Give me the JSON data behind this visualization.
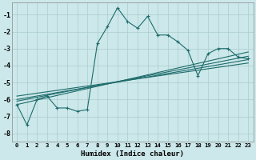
{
  "xlabel": "Humidex (Indice chaleur)",
  "bg_color": "#cce8ea",
  "grid_color": "#aacccc",
  "line_color": "#1e6b6b",
  "xlim": [
    -0.5,
    23.5
  ],
  "ylim": [
    -8.5,
    -0.3
  ],
  "yticks": [
    -8,
    -7,
    -6,
    -5,
    -4,
    -3,
    -2,
    -1
  ],
  "xticks": [
    0,
    1,
    2,
    3,
    4,
    5,
    6,
    7,
    8,
    9,
    10,
    11,
    12,
    13,
    14,
    15,
    16,
    17,
    18,
    19,
    20,
    21,
    22,
    23
  ],
  "main_x": [
    0,
    1,
    2,
    3,
    4,
    5,
    6,
    7,
    8,
    9,
    10,
    11,
    12,
    13,
    14,
    15,
    16,
    17,
    18,
    19,
    20,
    21,
    22,
    23
  ],
  "main_y": [
    -6.3,
    -7.5,
    -6.0,
    -5.8,
    -6.5,
    -6.5,
    -6.7,
    -6.6,
    -2.7,
    -1.7,
    -0.6,
    -1.4,
    -1.8,
    -1.1,
    -2.2,
    -2.2,
    -2.6,
    -3.1,
    -4.6,
    -3.3,
    -3.0,
    -3.0,
    -3.5,
    -3.6
  ],
  "reg_lines": [
    {
      "x": [
        0,
        23
      ],
      "y": [
        -6.3,
        -3.2
      ]
    },
    {
      "x": [
        0,
        23
      ],
      "y": [
        -6.1,
        -3.45
      ]
    },
    {
      "x": [
        0,
        23
      ],
      "y": [
        -6.0,
        -3.65
      ]
    },
    {
      "x": [
        0,
        23
      ],
      "y": [
        -5.8,
        -3.85
      ]
    }
  ],
  "xtick_labels": [
    "0",
    "1",
    "2",
    "3",
    "4",
    "5",
    "6",
    "7",
    "8",
    "9",
    "10",
    "11",
    "12",
    "13",
    "14",
    "15",
    "16",
    "17",
    "18",
    "19",
    "20",
    "21",
    "22",
    "23"
  ]
}
